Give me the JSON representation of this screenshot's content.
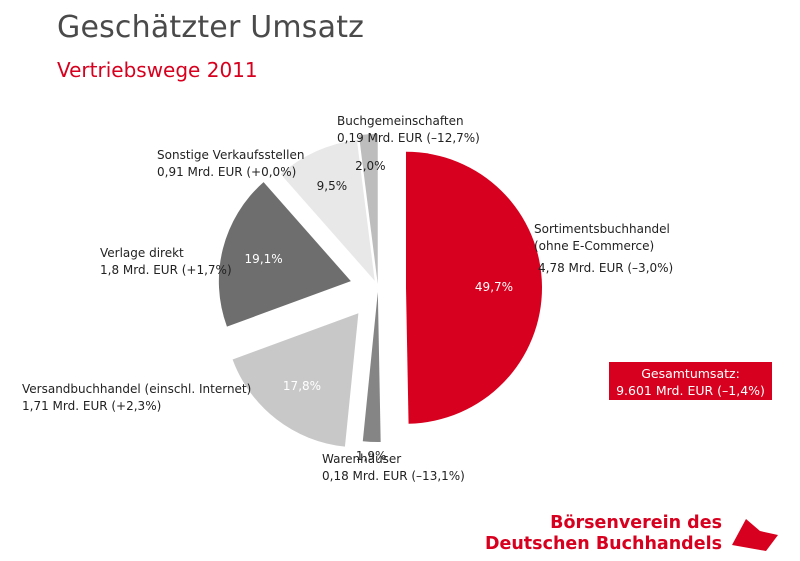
{
  "title": "Geschätzter Umsatz",
  "subtitle": "Vertriebswege 2011",
  "chart_data": {
    "type": "pie",
    "slices": [
      {
        "id": "sortiment",
        "lines": [
          "Sortimentsbuchhandel",
          "(ohne E-Commerce)",
          "4,78 Mrd. EUR (–3,0%)"
        ],
        "percent": 49.7,
        "percent_label": "49,7%",
        "color": "#d7001e"
      },
      {
        "id": "warenhaeuser",
        "lines": [
          "Warenhäuser",
          "0,18 Mrd. EUR (–13,1%)"
        ],
        "percent": 1.9,
        "percent_label": "1,9%",
        "color": "#858585"
      },
      {
        "id": "versand",
        "lines": [
          "Versandbuchhandel (einschl. Internet)",
          "1,71 Mrd. EUR (+2,3%)"
        ],
        "percent": 17.8,
        "percent_label": "17,8%",
        "color": "#c8c8c8"
      },
      {
        "id": "verlage",
        "lines": [
          "Verlage direkt",
          "1,8 Mrd. EUR (+1,7%)"
        ],
        "percent": 19.1,
        "percent_label": "19,1%",
        "color": "#6e6e6e"
      },
      {
        "id": "sonstige",
        "lines": [
          "Sonstige Verkaufsstellen",
          "0,91 Mrd. EUR (+0,0%)"
        ],
        "percent": 9.5,
        "percent_label": "9,5%",
        "color": "#e8e8e8"
      },
      {
        "id": "buchgemeinschaften",
        "lines": [
          "Buchgemeinschaften",
          "0,19 Mrd. EUR (–12,7%)"
        ],
        "percent": 2.0,
        "percent_label": "2,0%",
        "color": "#bdbdbd"
      }
    ]
  },
  "total": {
    "label": "Gesamtumsatz:",
    "value": "9.601 Mrd. EUR (–1,4%)"
  },
  "logo": {
    "line1": "Börsenverein des",
    "line2": "Deutschen Buchhandels"
  },
  "colors": {
    "accent": "#d7001e",
    "title": "#4a4a4a"
  }
}
